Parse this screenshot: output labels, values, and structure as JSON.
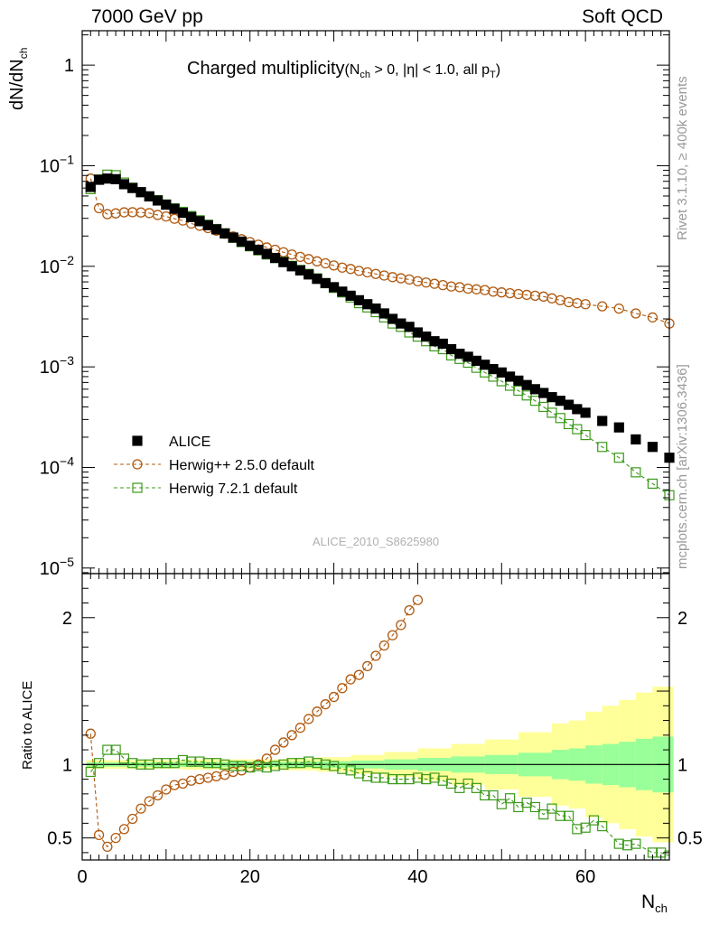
{
  "header": {
    "left": "7000 GeV pp",
    "right": "Soft QCD"
  },
  "side_labels": {
    "top": "Rivet 3.1.10, ≥ 400k events",
    "bottom": "mcplots.cern.ch [arXiv:1306.3436]"
  },
  "colors": {
    "alice": "#000000",
    "herwigpp": "#b05a10",
    "herwig7": "#3d9a1b",
    "band_inner": "#99ff99",
    "band_outer": "#ffff99"
  },
  "chart_data": {
    "type": "scatter",
    "title": "Charged multiplicity",
    "title_suffix": "(N_ch > 0, |η| < 1.0, all p_T)",
    "analysis_tag": "ALICE_2010_S8625980",
    "xlabel": "N_ch",
    "xlim": [
      0,
      70
    ],
    "x_ticks": [
      "0",
      "20",
      "40",
      "60"
    ],
    "upper": {
      "ylabel": "dN/dN_ch",
      "yscale": "log",
      "ylim": [
        8.8e-06,
        2.2
      ],
      "y_ticks": [
        {
          "value": 1,
          "label": "1"
        },
        {
          "value": 0.1,
          "label": "10^-1"
        },
        {
          "value": 0.01,
          "label": "10^-2"
        },
        {
          "value": 0.001,
          "label": "10^-3"
        },
        {
          "value": 0.0001,
          "label": "10^-4"
        },
        {
          "value": 1e-05,
          "label": "10^-5"
        }
      ]
    },
    "lower": {
      "ylabel": "Ratio to ALICE",
      "ylim": [
        0.35,
        2.3
      ],
      "y_ticks": [
        {
          "value": 0.5,
          "label": "0.5"
        },
        {
          "value": 1,
          "label": "1"
        },
        {
          "value": 2,
          "label": "2"
        }
      ]
    },
    "legend": {
      "position": "lower-left",
      "entries": [
        {
          "name": "ALICE",
          "marker": "square-filled"
        },
        {
          "name": "Herwig++ 2.5.0 default",
          "marker": "circle-open"
        },
        {
          "name": "Herwig 7.2.1 default",
          "marker": "square-open"
        }
      ]
    },
    "alice": {
      "x": [
        1,
        2,
        3,
        4,
        5,
        6,
        7,
        8,
        9,
        10,
        11,
        12,
        13,
        14,
        15,
        16,
        17,
        18,
        19,
        20,
        21,
        22,
        23,
        24,
        25,
        26,
        27,
        28,
        29,
        30,
        31,
        32,
        33,
        34,
        35,
        36,
        37,
        38,
        39,
        40,
        41,
        42,
        43,
        44,
        45,
        46,
        47,
        48,
        49,
        50,
        51,
        52,
        53,
        54,
        55,
        56,
        57,
        58,
        59,
        60,
        62,
        64,
        66,
        68,
        70
      ],
      "y": [
        0.0615,
        0.0725,
        0.0745,
        0.0735,
        0.0655,
        0.06,
        0.0546,
        0.0496,
        0.0451,
        0.041,
        0.0373,
        0.034,
        0.0309,
        0.0281,
        0.0256,
        0.0233,
        0.0212,
        0.0193,
        0.0176,
        0.016,
        0.0146,
        0.0133,
        0.0121,
        0.011,
        0.01,
        0.0091,
        0.0083,
        0.0075,
        0.0068,
        0.0062,
        0.0056,
        0.0051,
        0.0046,
        0.0042,
        0.0038,
        0.0034,
        0.003,
        0.0027,
        0.0025,
        0.0022,
        0.002,
        0.0018,
        0.0017,
        0.0015,
        0.00135,
        0.00126,
        0.00115,
        0.00105,
        0.00095,
        0.00088,
        0.0008,
        0.00073,
        0.00066,
        0.0006,
        0.00055,
        0.0005,
        0.00046,
        0.00042,
        0.00038,
        0.00035,
        0.00029,
        0.00025,
        0.00019,
        0.00016,
        0.000125
      ]
    },
    "herwig_pp": {
      "x": [
        1,
        2,
        3,
        4,
        5,
        6,
        7,
        8,
        9,
        10,
        11,
        12,
        13,
        14,
        15,
        16,
        17,
        18,
        19,
        20,
        21,
        22,
        23,
        24,
        25,
        26,
        27,
        28,
        29,
        30,
        31,
        32,
        33,
        34,
        35,
        36,
        37,
        38,
        39,
        40,
        41,
        42,
        43,
        44,
        45,
        46,
        47,
        48,
        49,
        50,
        51,
        52,
        53,
        54,
        55,
        56,
        57,
        58,
        59,
        60,
        62,
        64,
        66,
        68,
        70
      ],
      "y": [
        0.0745,
        0.0378,
        0.033,
        0.0336,
        0.0344,
        0.0345,
        0.0343,
        0.0338,
        0.0324,
        0.0313,
        0.0297,
        0.0285,
        0.0266,
        0.0253,
        0.024,
        0.0226,
        0.0211,
        0.0198,
        0.0186,
        0.0174,
        0.0164,
        0.0154,
        0.0146,
        0.0138,
        0.0131,
        0.0124,
        0.0118,
        0.0112,
        0.0107,
        0.0102,
        0.0097,
        0.0094,
        0.009,
        0.0087,
        0.0084,
        0.0081,
        0.0078,
        0.0076,
        0.0074,
        0.0071,
        0.0069,
        0.0067,
        0.0065,
        0.0063,
        0.0062,
        0.006,
        0.0059,
        0.0058,
        0.0056,
        0.0055,
        0.0054,
        0.0053,
        0.0052,
        0.0051,
        0.005,
        0.0048,
        0.0046,
        0.0044,
        0.0043,
        0.0042,
        0.004,
        0.0038,
        0.0034,
        0.0031,
        0.0027
      ]
    },
    "herwig7": {
      "x": [
        1,
        2,
        3,
        4,
        5,
        6,
        7,
        8,
        9,
        10,
        11,
        12,
        13,
        14,
        15,
        16,
        17,
        18,
        19,
        20,
        21,
        22,
        23,
        24,
        25,
        26,
        27,
        28,
        29,
        30,
        31,
        32,
        33,
        34,
        35,
        36,
        37,
        38,
        39,
        40,
        41,
        42,
        43,
        44,
        45,
        46,
        47,
        48,
        49,
        50,
        51,
        52,
        53,
        54,
        55,
        56,
        57,
        58,
        59,
        60,
        62,
        64,
        66,
        68,
        70
      ],
      "y": [
        0.0585,
        0.073,
        0.0815,
        0.0805,
        0.068,
        0.0605,
        0.0545,
        0.0495,
        0.0455,
        0.0412,
        0.0377,
        0.0348,
        0.0316,
        0.0287,
        0.0259,
        0.0235,
        0.0213,
        0.0192,
        0.0174,
        0.0158,
        0.0144,
        0.0131,
        0.0121,
        0.0111,
        0.0101,
        0.0092,
        0.0084,
        0.0076,
        0.0068,
        0.0061,
        0.0055,
        0.0049,
        0.0043,
        0.0039,
        0.0035,
        0.0031,
        0.0027,
        0.0025,
        0.0022,
        0.002,
        0.0018,
        0.0016,
        0.0015,
        0.0013,
        0.0012,
        0.0011,
        0.00098,
        0.00088,
        0.0008,
        0.00072,
        0.00065,
        0.00058,
        0.00052,
        0.00046,
        0.0004,
        0.00035,
        0.00031,
        0.00027,
        0.00024,
        0.00021,
        0.00016,
        0.000125,
        8.95e-05,
        6.9e-05,
        5.3e-05
      ]
    },
    "ratio_herwig_pp": {
      "x": [
        1,
        2,
        3,
        4,
        5,
        6,
        7,
        8,
        9,
        10,
        11,
        12,
        13,
        14,
        15,
        16,
        17,
        18,
        19,
        20,
        21,
        22,
        23,
        24,
        25,
        26,
        27,
        28,
        29,
        30,
        31,
        32,
        33,
        34,
        35,
        36,
        37,
        38,
        39,
        40
      ],
      "y": [
        1.21,
        0.52,
        0.44,
        0.5,
        0.56,
        0.63,
        0.7,
        0.75,
        0.79,
        0.83,
        0.86,
        0.87,
        0.89,
        0.9,
        0.91,
        0.92,
        0.93,
        0.95,
        0.96,
        0.98,
        1.0,
        1.04,
        1.1,
        1.15,
        1.2,
        1.25,
        1.31,
        1.36,
        1.41,
        1.46,
        1.52,
        1.58,
        1.61,
        1.67,
        1.74,
        1.81,
        1.88,
        1.95,
        2.05,
        2.12
      ]
    },
    "ratio_herwig7": {
      "x": [
        1,
        2,
        3,
        4,
        5,
        6,
        7,
        8,
        9,
        10,
        11,
        12,
        13,
        14,
        15,
        16,
        17,
        18,
        19,
        20,
        21,
        22,
        23,
        24,
        25,
        26,
        27,
        28,
        29,
        30,
        31,
        32,
        33,
        34,
        35,
        36,
        37,
        38,
        39,
        40,
        41,
        42,
        43,
        44,
        45,
        46,
        47,
        48,
        49,
        50,
        51,
        52,
        53,
        54,
        55,
        56,
        57,
        58,
        59,
        60,
        61,
        62,
        64,
        65,
        66,
        68,
        69,
        70
      ],
      "y": [
        0.95,
        1.01,
        1.1,
        1.1,
        1.04,
        1.01,
        1.0,
        1.0,
        1.01,
        1.01,
        1.01,
        1.03,
        1.02,
        1.02,
        1.01,
        1.01,
        1.0,
        0.99,
        0.99,
        0.98,
        0.99,
        0.98,
        0.99,
        1.0,
        1.01,
        1.01,
        1.02,
        1.01,
        1.0,
        0.99,
        0.97,
        0.96,
        0.94,
        0.92,
        0.91,
        0.91,
        0.9,
        0.9,
        0.9,
        0.91,
        0.9,
        0.91,
        0.89,
        0.87,
        0.84,
        0.87,
        0.84,
        0.79,
        0.79,
        0.73,
        0.77,
        0.71,
        0.74,
        0.71,
        0.66,
        0.7,
        0.65,
        0.65,
        0.56,
        0.57,
        0.62,
        0.58,
        0.46,
        0.45,
        0.46,
        0.4,
        0.4,
        0.38
      ]
    },
    "band": {
      "x_edges": [
        0.5,
        4,
        8,
        12,
        16,
        20,
        24,
        28,
        32,
        36,
        40,
        44,
        48,
        52,
        56,
        58,
        60,
        62,
        64,
        66,
        68,
        70.5
      ],
      "inner_half": [
        0.015,
        0.015,
        0.016,
        0.017,
        0.018,
        0.018,
        0.02,
        0.022,
        0.027,
        0.035,
        0.045,
        0.055,
        0.065,
        0.08,
        0.1,
        0.11,
        0.13,
        0.14,
        0.155,
        0.175,
        0.19
      ],
      "outer_half": [
        0.03,
        0.03,
        0.03,
        0.035,
        0.035,
        0.035,
        0.04,
        0.05,
        0.065,
        0.085,
        0.11,
        0.14,
        0.17,
        0.22,
        0.28,
        0.3,
        0.36,
        0.4,
        0.44,
        0.49,
        0.53
      ]
    }
  }
}
